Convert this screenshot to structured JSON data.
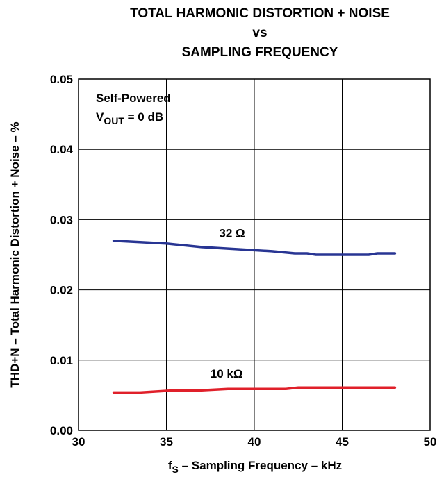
{
  "chart_data": {
    "type": "line",
    "title_lines": [
      "TOTAL HARMONIC DISTORTION + NOISE",
      "vs",
      "SAMPLING FREQUENCY"
    ],
    "xlabel": {
      "main": "f",
      "sub": "S",
      "rest": " – Sampling Frequency – kHz"
    },
    "ylabel": "THD+N – Total Harmonic Distortion + Noise – %",
    "xlim": [
      30,
      50
    ],
    "ylim": [
      0.0,
      0.05
    ],
    "x_ticks": [
      "30",
      "35",
      "40",
      "45",
      "50"
    ],
    "y_ticks": [
      "0.00",
      "0.01",
      "0.02",
      "0.03",
      "0.04",
      "0.05"
    ],
    "grid": true,
    "annotation": {
      "line1": "Self-Powered",
      "line2_main": "V",
      "line2_sub": "OUT",
      "line2_rest": " = 0 dB"
    },
    "series": [
      {
        "name": "32 Ω",
        "color": "#283593",
        "label_at": [
          38,
          0.0275
        ],
        "x": [
          32,
          33.5,
          35,
          37,
          39,
          41,
          42.3,
          43,
          43.5,
          44,
          45,
          46,
          46.5,
          47,
          48
        ],
        "y": [
          0.027,
          0.0268,
          0.0266,
          0.0261,
          0.0258,
          0.0255,
          0.0252,
          0.0252,
          0.025,
          0.025,
          0.025,
          0.025,
          0.025,
          0.0252,
          0.0252
        ]
      },
      {
        "name": "10 kΩ",
        "color": "#e0202a",
        "label_at": [
          37.5,
          0.0075
        ],
        "x": [
          32,
          33.5,
          35.5,
          37,
          38.5,
          40,
          41.8,
          42.5,
          44,
          46,
          48
        ],
        "y": [
          0.0054,
          0.0054,
          0.0057,
          0.0057,
          0.0059,
          0.0059,
          0.0059,
          0.0061,
          0.0061,
          0.0061,
          0.0061
        ]
      }
    ]
  }
}
